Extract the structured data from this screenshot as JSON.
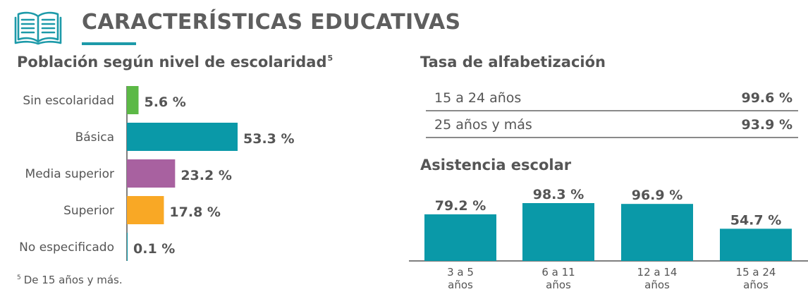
{
  "header": {
    "title": "CARACTERÍSTICAS EDUCATIVAS",
    "icon": "open-book-icon",
    "accent_color": "#1d9aa9"
  },
  "education": {
    "title": "Población según nivel de escolaridad",
    "footnote_mark": "5",
    "footnote_text": "De 15 años y más."
  },
  "literacy": {
    "title": "Tasa de alfabetización",
    "rows": [
      {
        "label": "15 a 24 años",
        "value": "99.6 %"
      },
      {
        "label": "25 años y más",
        "value": "93.9 %"
      }
    ]
  },
  "attendance": {
    "title": "Asistencia escolar"
  },
  "chart_data": [
    {
      "type": "bar",
      "orientation": "horizontal",
      "title": "Población según nivel de escolaridad",
      "categories": [
        "Sin escolaridad",
        "Básica",
        "Media superior",
        "Superior",
        "No especificado"
      ],
      "values": [
        5.6,
        53.3,
        23.2,
        17.8,
        0.1
      ],
      "value_labels": [
        "5.6 %",
        "53.3 %",
        "23.2 %",
        "17.8 %",
        "0.1 %"
      ],
      "colors": [
        "#5cb946",
        "#0a99a8",
        "#a861a0",
        "#f9a825",
        "#0a99a8"
      ],
      "xlim": [
        0,
        100
      ],
      "grid": false
    },
    {
      "type": "bar",
      "orientation": "vertical",
      "title": "Asistencia escolar",
      "categories": [
        "3 a 5 años",
        "6 a 11 años",
        "12 a 14 años",
        "15 a 24 años"
      ],
      "values": [
        79.2,
        98.3,
        96.9,
        54.7
      ],
      "value_labels": [
        "79.2 %",
        "98.3 %",
        "96.9 %",
        "54.7 %"
      ],
      "colors": [
        "#0a99a8",
        "#0a99a8",
        "#0a99a8",
        "#0a99a8"
      ],
      "ylim": [
        0,
        100
      ],
      "grid": false
    }
  ]
}
